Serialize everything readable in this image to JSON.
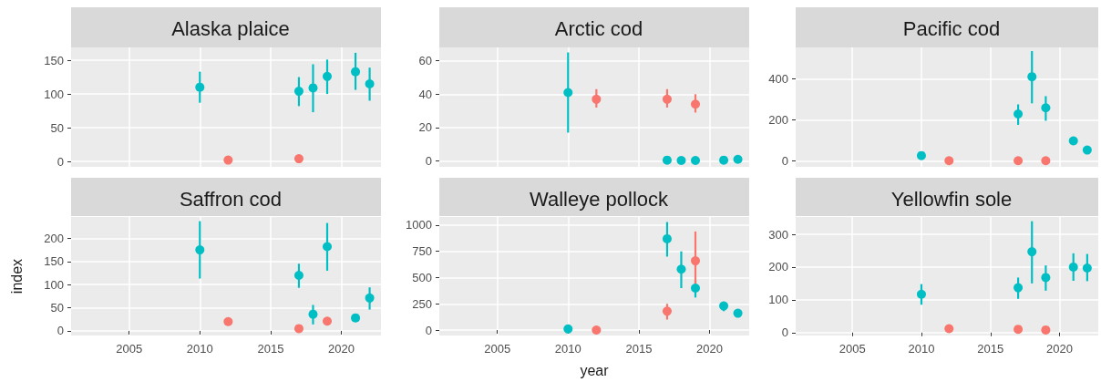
{
  "chart_data": [
    {
      "type": "scatter",
      "title": "Alaska plaice",
      "xlim": [
        2000.9,
        2022.8
      ],
      "xticks": [
        2005,
        2010,
        2015,
        2020
      ],
      "ylim": [
        -8,
        169
      ],
      "yticks": [
        0,
        50,
        100,
        150
      ],
      "tick_labels": "y",
      "grid": true,
      "marker": "circle",
      "series": [
        {
          "color": "#00bfc4",
          "x": [
            2010,
            2017,
            2018,
            2019,
            2021,
            2022
          ],
          "values": [
            110,
            104,
            109,
            126,
            133,
            115
          ],
          "errors": [
            [
              87,
              133
            ],
            [
              82,
              125
            ],
            [
              73,
              144
            ],
            [
              100,
              151
            ],
            [
              106,
              161
            ],
            [
              90,
              139
            ]
          ]
        },
        {
          "color": "#f8766d",
          "x": [
            2012,
            2017
          ],
          "values": [
            2,
            4
          ],
          "errors": [
            null,
            null
          ]
        }
      ]
    },
    {
      "type": "scatter",
      "title": "Arctic cod",
      "xlim": [
        2000.9,
        2022.8
      ],
      "xticks": [
        2005,
        2010,
        2015,
        2020
      ],
      "ylim": [
        -3.5,
        68
      ],
      "yticks": [
        0,
        20,
        40,
        60
      ],
      "tick_labels": "y",
      "grid": true,
      "marker": "circle",
      "series": [
        {
          "color": "#00bfc4",
          "x": [
            2010,
            2017,
            2018,
            2019,
            2021,
            2022
          ],
          "values": [
            41,
            0.5,
            0.3,
            0.3,
            0.5,
            1
          ],
          "errors": [
            [
              17,
              65
            ],
            null,
            null,
            null,
            null,
            null
          ]
        },
        {
          "color": "#f8766d",
          "x": [
            2012,
            2017,
            2019
          ],
          "values": [
            37,
            37,
            34
          ],
          "errors": [
            [
              32,
              43
            ],
            [
              32,
              43
            ],
            [
              29,
              40
            ]
          ]
        }
      ]
    },
    {
      "type": "scatter",
      "title": "Pacific cod",
      "xlim": [
        2000.9,
        2022.8
      ],
      "xticks": [
        2005,
        2010,
        2015,
        2020
      ],
      "ylim": [
        -30,
        553
      ],
      "yticks": [
        0,
        200,
        400
      ],
      "tick_labels": "y",
      "grid": true,
      "marker": "circle",
      "series": [
        {
          "color": "#00bfc4",
          "x": [
            2010,
            2017,
            2018,
            2019,
            2021,
            2022
          ],
          "values": [
            25,
            228,
            410,
            258,
            97,
            52
          ],
          "errors": [
            null,
            [
              175,
              275
            ],
            [
              280,
              535
            ],
            [
              195,
              315
            ],
            null,
            null
          ]
        },
        {
          "color": "#f8766d",
          "x": [
            2012,
            2017,
            2019
          ],
          "values": [
            0,
            0,
            0
          ],
          "errors": [
            null,
            null,
            null
          ]
        }
      ]
    },
    {
      "type": "scatter",
      "title": "Saffron cod",
      "ylabel": "index",
      "xlim": [
        2000.9,
        2022.8
      ],
      "xticks": [
        2005,
        2010,
        2015,
        2020
      ],
      "ylim": [
        -10,
        246
      ],
      "yticks": [
        0,
        50,
        100,
        150,
        200
      ],
      "grid": true,
      "marker": "circle",
      "series": [
        {
          "color": "#00bfc4",
          "x": [
            2010,
            2017,
            2018,
            2019,
            2021,
            2022
          ],
          "values": [
            175,
            120,
            36,
            182,
            28,
            71
          ],
          "errors": [
            [
              113,
              237
            ],
            [
              93,
              145
            ],
            [
              14,
              56
            ],
            [
              130,
              233
            ],
            null,
            [
              46,
              94
            ]
          ]
        },
        {
          "color": "#f8766d",
          "x": [
            2012,
            2017,
            2019
          ],
          "values": [
            20,
            5,
            21
          ],
          "errors": [
            null,
            null,
            [
              12,
              28
            ]
          ]
        }
      ]
    },
    {
      "type": "scatter",
      "title": "Walleye pollock",
      "xlabel": "year",
      "xlim": [
        2000.9,
        2022.8
      ],
      "xticks": [
        2005,
        2010,
        2015,
        2020
      ],
      "ylim": [
        -52,
        1078
      ],
      "yticks": [
        0,
        250,
        500,
        750,
        1000
      ],
      "grid": true,
      "marker": "circle",
      "series": [
        {
          "color": "#00bfc4",
          "x": [
            2010,
            2017,
            2018,
            2019,
            2021,
            2022
          ],
          "values": [
            10,
            870,
            580,
            400,
            230,
            160
          ],
          "errors": [
            null,
            [
              700,
              1030
            ],
            [
              400,
              750
            ],
            [
              310,
              480
            ],
            [
              180,
              270
            ],
            null
          ]
        },
        {
          "color": "#f8766d",
          "x": [
            2012,
            2017,
            2019
          ],
          "values": [
            0,
            180,
            660
          ],
          "errors": [
            null,
            [
              100,
              250
            ],
            [
              380,
              940
            ]
          ]
        }
      ]
    },
    {
      "type": "scatter",
      "title": "Yellowfin sole",
      "xlim": [
        2000.9,
        2022.8
      ],
      "xticks": [
        2005,
        2010,
        2015,
        2020
      ],
      "ylim": [
        -9,
        353
      ],
      "yticks": [
        0,
        100,
        200,
        300
      ],
      "grid": true,
      "marker": "circle",
      "series": [
        {
          "color": "#00bfc4",
          "x": [
            2010,
            2017,
            2018,
            2019,
            2021,
            2022
          ],
          "values": [
            117,
            137,
            247,
            168,
            200,
            197
          ],
          "errors": [
            [
              85,
              148
            ],
            [
              103,
              168
            ],
            [
              150,
              340
            ],
            [
              128,
              205
            ],
            [
              158,
              242
            ],
            [
              157,
              240
            ]
          ]
        },
        {
          "color": "#f8766d",
          "x": [
            2012,
            2017,
            2019
          ],
          "values": [
            12,
            10,
            8
          ],
          "errors": [
            null,
            null,
            null
          ]
        }
      ]
    }
  ]
}
